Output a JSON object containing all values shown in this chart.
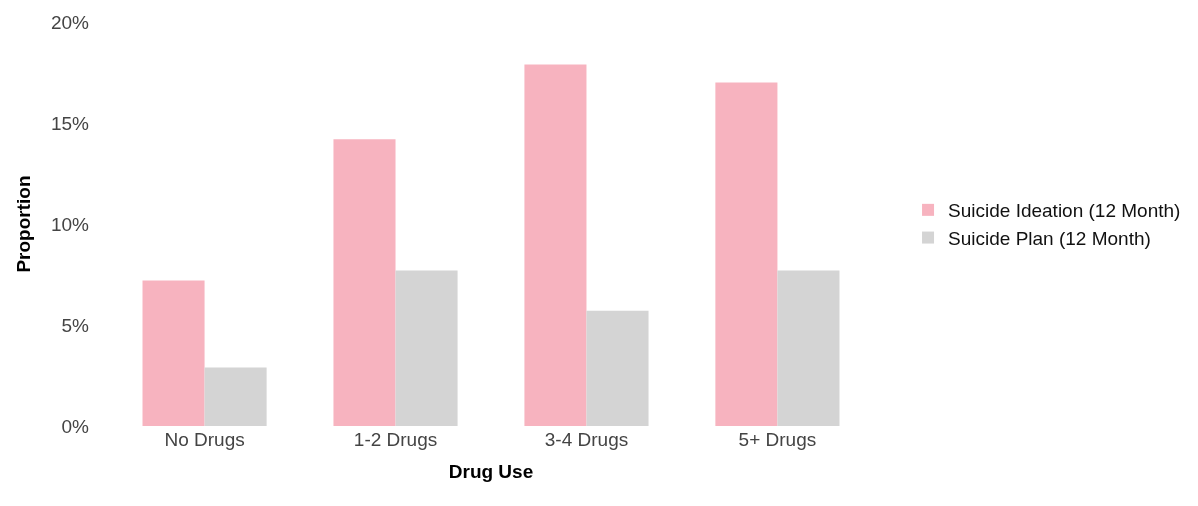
{
  "chart_data": {
    "type": "bar",
    "xlabel": "Drug Use",
    "ylabel": "Proportion",
    "categories": [
      "No Drugs",
      "1-2 Drugs",
      "3-4 Drugs",
      "5+ Drugs"
    ],
    "series": [
      {
        "name": "Suicide Ideation (12 Month)",
        "color": "#f7b3bf",
        "values": [
          7.2,
          14.2,
          17.9,
          17.0
        ]
      },
      {
        "name": "Suicide Plan (12 Month)",
        "color": "#d4d4d4",
        "values": [
          2.9,
          7.7,
          5.7,
          7.7
        ]
      }
    ],
    "ylim": [
      0,
      20
    ],
    "yticks": [
      {
        "value": 0,
        "label": "0%"
      },
      {
        "value": 5,
        "label": "5%"
      },
      {
        "value": 10,
        "label": "10%"
      },
      {
        "value": 15,
        "label": "15%"
      },
      {
        "value": 20,
        "label": "20%"
      }
    ],
    "legend": "right"
  }
}
